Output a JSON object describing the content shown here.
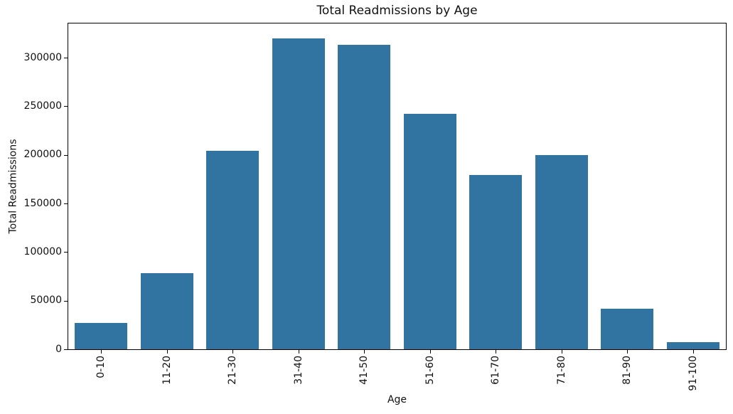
{
  "chart_data": {
    "type": "bar",
    "title": "Total Readmissions by Age",
    "xlabel": "Age",
    "ylabel": "Total Readmissions",
    "categories": [
      "0-10",
      "11-20",
      "21-30",
      "31-40",
      "41-50",
      "51-60",
      "61-70",
      "71-80",
      "81-90",
      "91-100"
    ],
    "values": [
      27000,
      78000,
      204000,
      320000,
      313000,
      242000,
      179000,
      200000,
      42000,
      7000
    ],
    "yticks": [
      0,
      50000,
      100000,
      150000,
      200000,
      250000,
      300000
    ],
    "ylim": [
      0,
      336600
    ],
    "grid": false,
    "legend": false,
    "bar_color": "#3274a1",
    "background_color": "#ffffff",
    "spine_color": "#000000",
    "text_color": "#111111"
  }
}
